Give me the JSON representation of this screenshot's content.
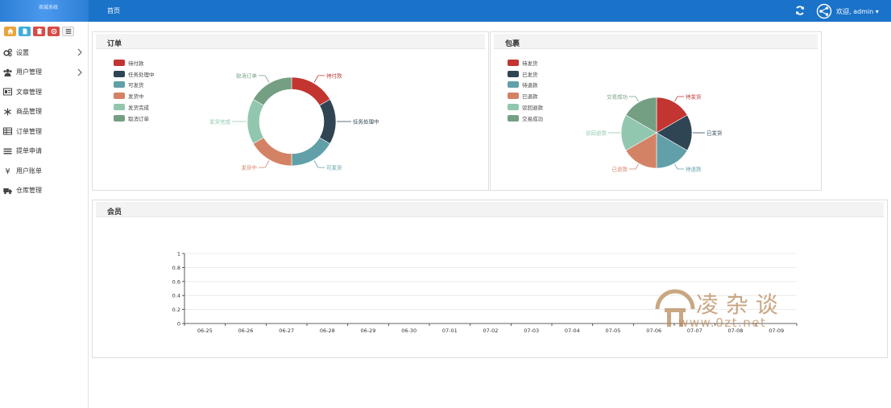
{
  "header": {
    "logo_text": "商城系统",
    "home_link": "首页",
    "welcome": "欢迎, admin ▾"
  },
  "shortcuts": [
    {
      "name": "home-icon",
      "color": "#e9a33d"
    },
    {
      "name": "document-icon",
      "color": "#3eaedc"
    },
    {
      "name": "trash-icon",
      "color": "#d94b47"
    },
    {
      "name": "refresh-icon",
      "color": "#d94b47"
    },
    {
      "name": "list-icon",
      "color": "#f2f2f2"
    }
  ],
  "sidebar": {
    "items": [
      {
        "label": "设置",
        "icon": "gears-icon",
        "has_children": true
      },
      {
        "label": "用户管理",
        "icon": "users-icon",
        "has_children": true
      },
      {
        "label": "文章管理",
        "icon": "article-icon",
        "has_children": false
      },
      {
        "label": "商品管理",
        "icon": "snowflake-icon",
        "has_children": false
      },
      {
        "label": "订单管理",
        "icon": "table-icon",
        "has_children": false
      },
      {
        "label": "提单申请",
        "icon": "bars-icon",
        "has_children": false
      },
      {
        "label": "用户账单",
        "icon": "yen-icon",
        "has_children": false
      },
      {
        "label": "仓库管理",
        "icon": "truck-icon",
        "has_children": false
      }
    ]
  },
  "orders_panel": {
    "title": "订单"
  },
  "packages_panel": {
    "title": "包裹"
  },
  "members_panel": {
    "title": "会员"
  },
  "chart_data": [
    {
      "type": "pie",
      "variant": "donut",
      "title": "订单",
      "labels": [
        "待付款",
        "任务处理中",
        "可发货",
        "发货中",
        "发货完成",
        "取消订单"
      ],
      "values": [
        1,
        1,
        1,
        1,
        1,
        1
      ],
      "colors": [
        "#c23531",
        "#2f4554",
        "#61a0a8",
        "#d48265",
        "#91c7ae",
        "#749f83"
      ],
      "legend_position": "top-left"
    },
    {
      "type": "pie",
      "title": "包裹",
      "labels": [
        "待发货",
        "已发货",
        "待退款",
        "已退款",
        "驳回退款",
        "交易成功"
      ],
      "values": [
        1,
        1,
        1,
        1,
        1,
        1
      ],
      "colors": [
        "#c23531",
        "#2f4554",
        "#61a0a8",
        "#d48265",
        "#91c7ae",
        "#749f83"
      ],
      "legend_position": "top-left"
    },
    {
      "type": "line",
      "title": "会员",
      "categories": [
        "06-25",
        "06-26",
        "06-27",
        "06-28",
        "06-29",
        "06-30",
        "07-01",
        "07-02",
        "07-03",
        "07-04",
        "07-05",
        "07-06",
        "07-07",
        "07-08",
        "07-09"
      ],
      "series": [],
      "ylim": [
        0,
        1
      ],
      "yticks": [
        "0",
        "0.2",
        "0.4",
        "0.6",
        "0.8",
        "1"
      ],
      "grid": true
    }
  ],
  "watermark": {
    "cn": "凌 杂 谈",
    "url": "www.0zt.net"
  }
}
